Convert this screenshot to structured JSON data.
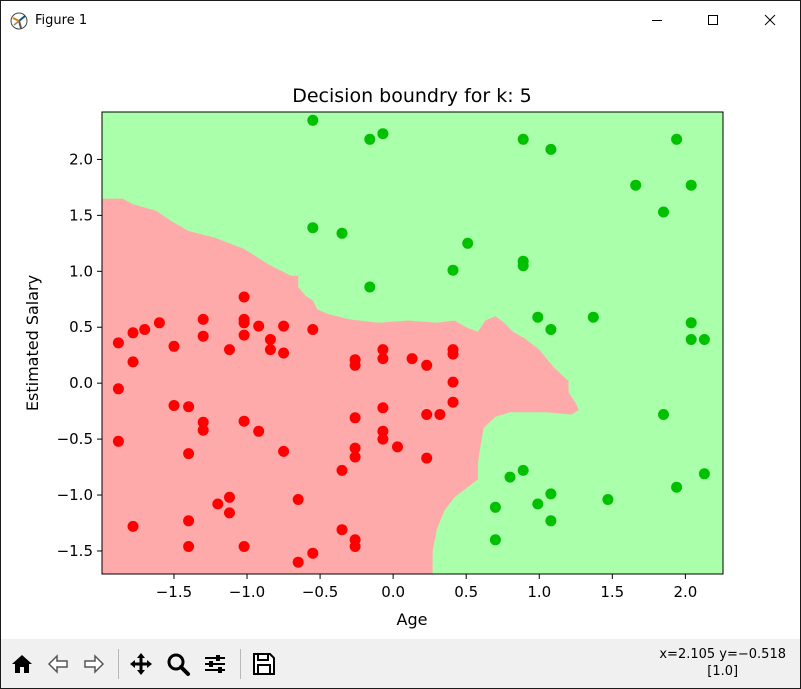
{
  "window": {
    "title": "Figure 1"
  },
  "chart_data": {
    "type": "scatter",
    "title": "Decision boundry for k: 5",
    "xlabel": "Age",
    "ylabel": "Estimated Salary",
    "xlim": [
      -1.9925,
      2.2575
    ],
    "ylim": [
      -1.7059,
      2.4241
    ],
    "xticks": [
      -1.5,
      -1.0,
      -0.5,
      0.0,
      0.5,
      1.0,
      1.5,
      2.0
    ],
    "xtick_labels": [
      "−1.5",
      "−1.0",
      "−0.5",
      "0.0",
      "0.5",
      "1.0",
      "1.5",
      "2.0"
    ],
    "yticks": [
      -1.5,
      -1.0,
      -0.5,
      0.0,
      0.5,
      1.0,
      1.5,
      2.0
    ],
    "ytick_labels": [
      "−1.5",
      "−1.0",
      "−0.5",
      "0.0",
      "0.5",
      "1.0",
      "1.5",
      "2.0"
    ],
    "grid": false,
    "regions": [
      {
        "class": 0,
        "color": "#ffaaaa"
      },
      {
        "class": 1,
        "color": "#aaffaa"
      }
    ],
    "class0_boundary": [
      [
        -1.9925,
        1.65
      ],
      [
        -1.85,
        1.65
      ],
      [
        -1.78,
        1.6
      ],
      [
        -1.62,
        1.54
      ],
      [
        -1.52,
        1.45
      ],
      [
        -1.4,
        1.36
      ],
      [
        -1.22,
        1.3
      ],
      [
        -1.02,
        1.2
      ],
      [
        -0.85,
        1.06
      ],
      [
        -0.7,
        0.96
      ],
      [
        -0.65,
        0.96
      ],
      [
        -0.65,
        0.86
      ],
      [
        -0.6,
        0.78
      ],
      [
        -0.55,
        0.74
      ],
      [
        -0.52,
        0.66
      ],
      [
        -0.45,
        0.62
      ],
      [
        -0.3,
        0.57
      ],
      [
        -0.1,
        0.54
      ],
      [
        0.1,
        0.56
      ],
      [
        0.3,
        0.54
      ],
      [
        0.42,
        0.56
      ],
      [
        0.5,
        0.5
      ],
      [
        0.58,
        0.46
      ],
      [
        0.63,
        0.56
      ],
      [
        0.7,
        0.6
      ],
      [
        0.76,
        0.54
      ],
      [
        0.82,
        0.46
      ],
      [
        0.9,
        0.4
      ],
      [
        1.0,
        0.3
      ],
      [
        1.05,
        0.22
      ],
      [
        1.1,
        0.14
      ],
      [
        1.2,
        0.02
      ],
      [
        1.2,
        -0.08
      ],
      [
        1.25,
        -0.18
      ],
      [
        1.27,
        -0.24
      ],
      [
        1.22,
        -0.28
      ],
      [
        1.05,
        -0.26
      ],
      [
        0.9,
        -0.26
      ],
      [
        0.8,
        -0.26
      ],
      [
        0.7,
        -0.3
      ],
      [
        0.62,
        -0.4
      ],
      [
        0.6,
        -0.54
      ],
      [
        0.58,
        -0.72
      ],
      [
        0.58,
        -0.86
      ],
      [
        0.52,
        -0.92
      ],
      [
        0.42,
        -1.02
      ],
      [
        0.35,
        -1.14
      ],
      [
        0.3,
        -1.3
      ],
      [
        0.27,
        -1.5
      ],
      [
        0.27,
        -1.7059
      ],
      [
        -1.9925,
        -1.7059
      ]
    ],
    "series": [
      {
        "name": "0",
        "color": "#ff0000",
        "points": [
          [
            -1.88,
            0.36
          ],
          [
            -1.88,
            -0.05
          ],
          [
            -1.88,
            -0.52
          ],
          [
            -1.78,
            0.45
          ],
          [
            -1.78,
            0.19
          ],
          [
            -1.78,
            -1.28
          ],
          [
            -1.7,
            0.48
          ],
          [
            -1.6,
            0.54
          ],
          [
            -1.5,
            0.33
          ],
          [
            -1.5,
            -0.2
          ],
          [
            -1.4,
            -0.21
          ],
          [
            -1.4,
            -0.63
          ],
          [
            -1.4,
            -1.23
          ],
          [
            -1.4,
            -1.46
          ],
          [
            -1.3,
            0.57
          ],
          [
            -1.3,
            0.42
          ],
          [
            -1.3,
            -0.35
          ],
          [
            -1.3,
            -0.42
          ],
          [
            -1.2,
            -1.08
          ],
          [
            -1.12,
            0.3
          ],
          [
            -1.12,
            -1.02
          ],
          [
            -1.12,
            -1.16
          ],
          [
            -1.02,
            0.77
          ],
          [
            -1.02,
            0.57
          ],
          [
            -1.02,
            0.54
          ],
          [
            -1.02,
            0.43
          ],
          [
            -1.02,
            -0.34
          ],
          [
            -1.02,
            -1.46
          ],
          [
            -0.92,
            0.51
          ],
          [
            -0.92,
            -0.43
          ],
          [
            -0.84,
            0.39
          ],
          [
            -0.84,
            0.3
          ],
          [
            -0.75,
            0.51
          ],
          [
            -0.75,
            0.27
          ],
          [
            -0.75,
            -0.61
          ],
          [
            -0.65,
            -1.04
          ],
          [
            -0.65,
            -1.6
          ],
          [
            -0.55,
            0.48
          ],
          [
            -0.55,
            -1.52
          ],
          [
            -0.35,
            -0.78
          ],
          [
            -0.35,
            -1.31
          ],
          [
            -0.26,
            0.21
          ],
          [
            -0.26,
            0.16
          ],
          [
            -0.26,
            -0.31
          ],
          [
            -0.26,
            -0.58
          ],
          [
            -0.26,
            -0.66
          ],
          [
            -0.26,
            -1.4
          ],
          [
            -0.26,
            -1.46
          ],
          [
            -0.07,
            0.3
          ],
          [
            -0.07,
            0.22
          ],
          [
            -0.07,
            -0.22
          ],
          [
            -0.07,
            -0.43
          ],
          [
            -0.07,
            -0.5
          ],
          [
            0.03,
            -0.57
          ],
          [
            0.13,
            0.22
          ],
          [
            0.23,
            0.16
          ],
          [
            0.23,
            -0.28
          ],
          [
            0.23,
            -0.67
          ],
          [
            0.32,
            -0.28
          ],
          [
            0.41,
            0.3
          ],
          [
            0.41,
            0.26
          ],
          [
            0.41,
            0.01
          ],
          [
            0.41,
            -0.17
          ]
        ]
      },
      {
        "name": "1",
        "color": "#00c000",
        "points": [
          [
            -0.55,
            2.35
          ],
          [
            -0.55,
            1.39
          ],
          [
            -0.35,
            1.34
          ],
          [
            -0.16,
            2.18
          ],
          [
            -0.16,
            0.86
          ],
          [
            -0.07,
            2.23
          ],
          [
            0.41,
            1.01
          ],
          [
            0.51,
            1.25
          ],
          [
            0.7,
            -1.11
          ],
          [
            0.7,
            -1.4
          ],
          [
            0.8,
            -0.84
          ],
          [
            0.89,
            2.18
          ],
          [
            0.89,
            1.09
          ],
          [
            0.89,
            1.05
          ],
          [
            0.89,
            -0.78
          ],
          [
            0.99,
            0.59
          ],
          [
            0.99,
            -1.08
          ],
          [
            1.08,
            2.09
          ],
          [
            1.08,
            0.48
          ],
          [
            1.08,
            -0.99
          ],
          [
            1.08,
            -1.23
          ],
          [
            1.37,
            0.59
          ],
          [
            1.47,
            -1.04
          ],
          [
            1.66,
            1.77
          ],
          [
            1.85,
            1.53
          ],
          [
            1.85,
            -0.28
          ],
          [
            1.94,
            2.18
          ],
          [
            1.94,
            -0.93
          ],
          [
            2.04,
            1.77
          ],
          [
            2.04,
            0.54
          ],
          [
            2.04,
            0.39
          ],
          [
            2.13,
            0.39
          ],
          [
            2.13,
            -0.81
          ]
        ]
      }
    ]
  },
  "toolbar": {
    "buttons": [
      "home-icon",
      "back-icon",
      "forward-icon",
      "pan-icon",
      "zoom-icon",
      "configure-subplots-icon",
      "save-icon"
    ],
    "coords_line1": "x=2.105 y=−0.518",
    "coords_line2": "[1.0]"
  }
}
